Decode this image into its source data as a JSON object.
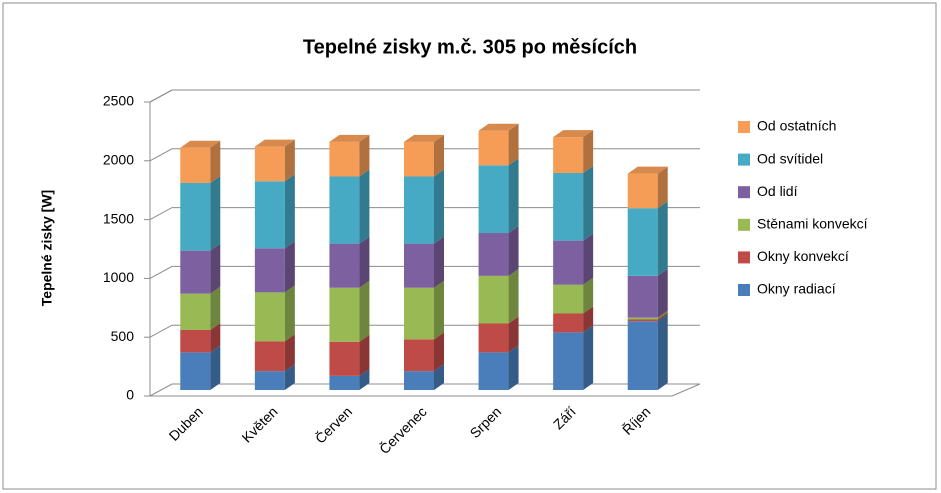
{
  "chart_data": {
    "type": "stacked_bar_3d",
    "title": "Tepelné zisky m.č. 305 po měsících",
    "y_label": "Tepelné zisky [W]",
    "categories": [
      "Duben",
      "Květen",
      "Červen",
      "Červenec",
      "Srpen",
      "Září",
      "Říjen"
    ],
    "series": [
      {
        "name": "Okny radiací",
        "color": "#4a7ebb",
        "values": [
          320,
          160,
          120,
          160,
          320,
          490,
          585
        ]
      },
      {
        "name": "Okny konvekcí",
        "color": "#be4b48",
        "values": [
          190,
          255,
          290,
          270,
          245,
          160,
          15
        ]
      },
      {
        "name": "Stěnami konvekcí",
        "color": "#98b954",
        "values": [
          310,
          415,
          460,
          440,
          405,
          245,
          15
        ]
      },
      {
        "name": "Od lidí",
        "color": "#7d60a0",
        "values": [
          365,
          375,
          375,
          375,
          365,
          375,
          355
        ]
      },
      {
        "name": "Od svítidel",
        "color": "#46aac5",
        "values": [
          575,
          570,
          570,
          570,
          575,
          575,
          575
        ]
      },
      {
        "name": "Od ostatních",
        "color": "#f59d56",
        "values": [
          300,
          295,
          295,
          295,
          295,
          305,
          295
        ]
      }
    ],
    "ylim": [
      0,
      2500
    ],
    "yticks": [
      0,
      500,
      1000,
      1500,
      2000,
      2500
    ],
    "grid": true,
    "legend": "right"
  }
}
